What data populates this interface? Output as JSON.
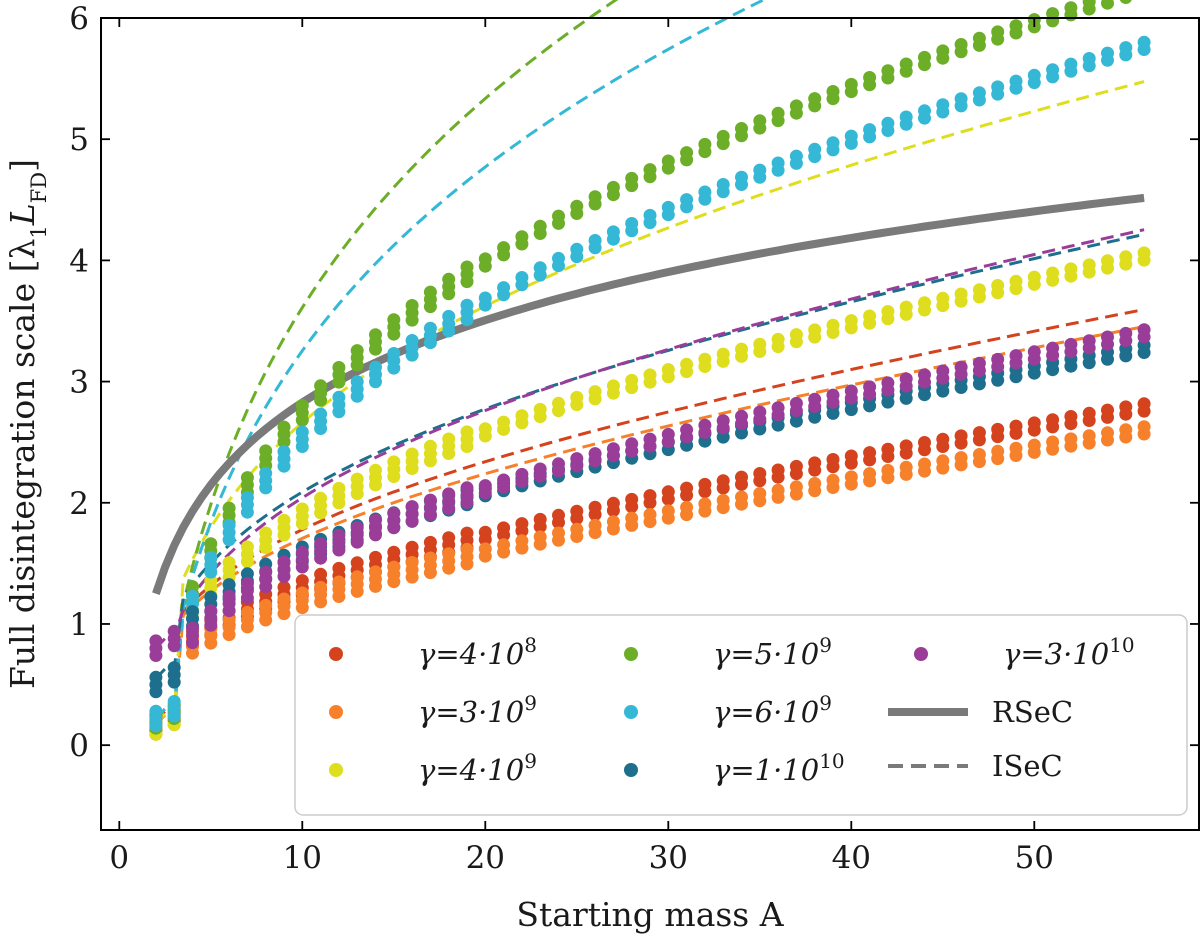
{
  "chart_data": {
    "type": "scatter",
    "xlabel": "Starting mass A",
    "ylabel": "Full disintegration scale",
    "ylabel_symbol": "[λ",
    "ylabel_sub1": "1",
    "ylabel_L": "L",
    "ylabel_sub2": "FD",
    "ylabel_close": "]",
    "xlim": [
      -1,
      59
    ],
    "ylim": [
      -0.7,
      6.0
    ],
    "xticks": [
      "0",
      "10",
      "20",
      "30",
      "40",
      "50"
    ],
    "xtick_values": [
      0,
      10,
      20,
      30,
      40,
      50
    ],
    "yticks": [
      "0",
      "1",
      "2",
      "3",
      "4",
      "5",
      "6"
    ],
    "ytick_values": [
      0,
      1,
      2,
      3,
      4,
      5,
      6
    ],
    "grid": false,
    "legend_position": "lower-right",
    "series": [
      {
        "name": "γ=4·10",
        "exp": "8",
        "color": "#d4421e",
        "dot_a": 0.33,
        "dot_b": 0.75,
        "dash_a": 0.52,
        "dash_b": 1.03,
        "dot_lo": 0.18,
        "dash_lo": 0.2
      },
      {
        "name": "γ=3·10",
        "exp": "9",
        "color": "#f7812a",
        "dot_a": 0.28,
        "dot_b": 0.7,
        "dash_a": 0.48,
        "dash_b": 1.0,
        "dot_lo": 0.15,
        "dash_lo": 0.17
      },
      {
        "name": "γ=4·10",
        "exp": "9",
        "color": "#dede1e",
        "dot_a": 0.71,
        "dot_b": 0.94,
        "dash_a": 1.1,
        "dash_b": 1.3,
        "dot_lo": 0.15,
        "dash_lo": 0.18
      },
      {
        "name": "γ=5·10",
        "exp": "9",
        "color": "#6cae27",
        "dot_a": 1.5,
        "dot_b": 0.96,
        "dash_a": 2.2,
        "dash_b": 1.09,
        "dot_lo": 0.2,
        "dash_lo": 0.22
      },
      {
        "name": "γ=6·10",
        "exp": "9",
        "color": "#34b8d6",
        "dot_a": 1.35,
        "dot_b": 0.9,
        "dash_a": 1.9,
        "dash_b": 1.05,
        "dot_lo": 0.22,
        "dash_lo": 0.22
      },
      {
        "name": "γ=1·10",
        "exp": "10",
        "color": "#1e6e8e",
        "dot_a": 0.45,
        "dot_b": 0.9,
        "dash_a": 0.7,
        "dash_b": 1.15,
        "dot_lo": 0.5,
        "dash_lo": 0.55
      },
      {
        "name": "γ=3·10",
        "exp": "10",
        "color": "#9a3d99",
        "dot_a": 0.55,
        "dot_b": 0.75,
        "dash_a": 0.75,
        "dash_b": 1.05,
        "dot_lo": 0.8,
        "dash_lo": 0.8
      }
    ],
    "rsec": {
      "name": "RSeC",
      "color": "#7a7a7a",
      "a": 0.45,
      "b": 1.25,
      "x_start": 2,
      "x_end": 56
    },
    "isec_label": "ISeC"
  }
}
